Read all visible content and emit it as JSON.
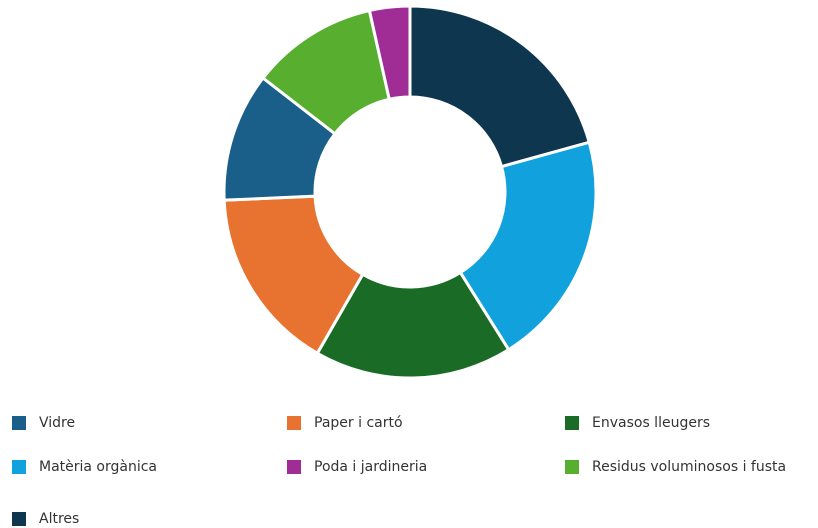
{
  "chart_data": {
    "type": "donut",
    "categories": [
      "Vidre",
      "Paper i cartó",
      "Envasos lleugers",
      "Matèria orgànica",
      "Poda i jardineria",
      "Residus voluminosos i fusta",
      "Altres"
    ],
    "values": [
      11.2,
      16,
      17.2,
      20.4,
      3.5,
      11,
      20.7
    ],
    "colors": [
      "#1a5e8a",
      "#e87331",
      "#1a6b25",
      "#11a1dc",
      "#a02d96",
      "#57ae2f",
      "#0e374f"
    ],
    "legend": "bottom"
  }
}
